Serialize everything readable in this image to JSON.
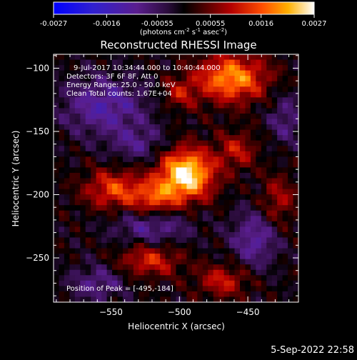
{
  "colorbar": {
    "ticks": [
      "-0.0027",
      "-0.0016",
      "-0.00055",
      "0.00055",
      "0.0016",
      "0.0027"
    ],
    "tick_values": [
      -0.0027,
      -0.0016,
      -0.00055,
      0.00055,
      0.0016,
      0.0027
    ],
    "range": [
      -0.0027,
      0.0027
    ],
    "units_prefix": "(photons cm",
    "units_exp1": "-2",
    "units_mid1": " s",
    "units_exp2": "-1",
    "units_mid2": " asec",
    "units_exp3": "-2",
    "units_suffix": ")"
  },
  "chart_data": {
    "type": "heatmap",
    "title": "Reconstructed RHESSI Image",
    "xlabel": "Heliocentric X (arcsec)",
    "ylabel": "Heliocentric Y (arcsec)",
    "xlim": [
      -592,
      -413
    ],
    "ylim": [
      -285,
      -89
    ],
    "x_ticks": [
      -550,
      -500,
      -450
    ],
    "x_tick_labels": [
      "−550",
      "−500",
      "−450"
    ],
    "y_ticks": [
      -100,
      -150,
      -200,
      -250
    ],
    "y_tick_labels": [
      "−100",
      "−150",
      "−200",
      "−250"
    ],
    "annotations": [
      "9-Jul-2017 10:34:44.000 to 10:40:44.000",
      "Detectors: 3F 6F 8F, Att 0",
      "Energy Range: 25.0 - 50.0 keV",
      "Clean    Total counts: 1.67E+04"
    ],
    "peak_label": "Position of Peak = [-495,-184]",
    "peak": [
      -495,
      -184
    ],
    "blobs": [
      {
        "x": -495,
        "y": -184,
        "amp": 0.0027,
        "sx": 14,
        "sy": 14
      },
      {
        "x": -462,
        "y": -108,
        "amp": 0.002,
        "sx": 18,
        "sy": 13
      },
      {
        "x": -548,
        "y": -196,
        "amp": 0.0014,
        "sx": 15,
        "sy": 11
      },
      {
        "x": -518,
        "y": -203,
        "amp": 0.0013,
        "sx": 12,
        "sy": 10
      },
      {
        "x": -522,
        "y": -252,
        "amp": 0.0012,
        "sx": 16,
        "sy": 9
      },
      {
        "x": -468,
        "y": -268,
        "amp": 0.0011,
        "sx": 13,
        "sy": 9
      },
      {
        "x": -458,
        "y": -165,
        "amp": 0.001,
        "sx": 10,
        "sy": 10
      },
      {
        "x": -428,
        "y": -205,
        "amp": 0.0009,
        "sx": 9,
        "sy": 14
      },
      {
        "x": -500,
        "y": -120,
        "amp": 0.0009,
        "sx": 9,
        "sy": 9
      },
      {
        "x": -555,
        "y": -130,
        "amp": -0.0012,
        "sx": 22,
        "sy": 16
      },
      {
        "x": -530,
        "y": -160,
        "amp": -0.0008,
        "sx": 14,
        "sy": 10
      },
      {
        "x": -520,
        "y": -225,
        "amp": -0.001,
        "sx": 20,
        "sy": 10
      },
      {
        "x": -445,
        "y": -235,
        "amp": -0.0011,
        "sx": 12,
        "sy": 16
      },
      {
        "x": -560,
        "y": -270,
        "amp": -0.0009,
        "sx": 14,
        "sy": 10
      },
      {
        "x": -422,
        "y": -140,
        "amp": -0.0008,
        "sx": 9,
        "sy": 14
      }
    ]
  },
  "timestamp": "5-Sep-2022 22:58",
  "colors": {
    "background": "#000000",
    "text": "#ffffff"
  }
}
